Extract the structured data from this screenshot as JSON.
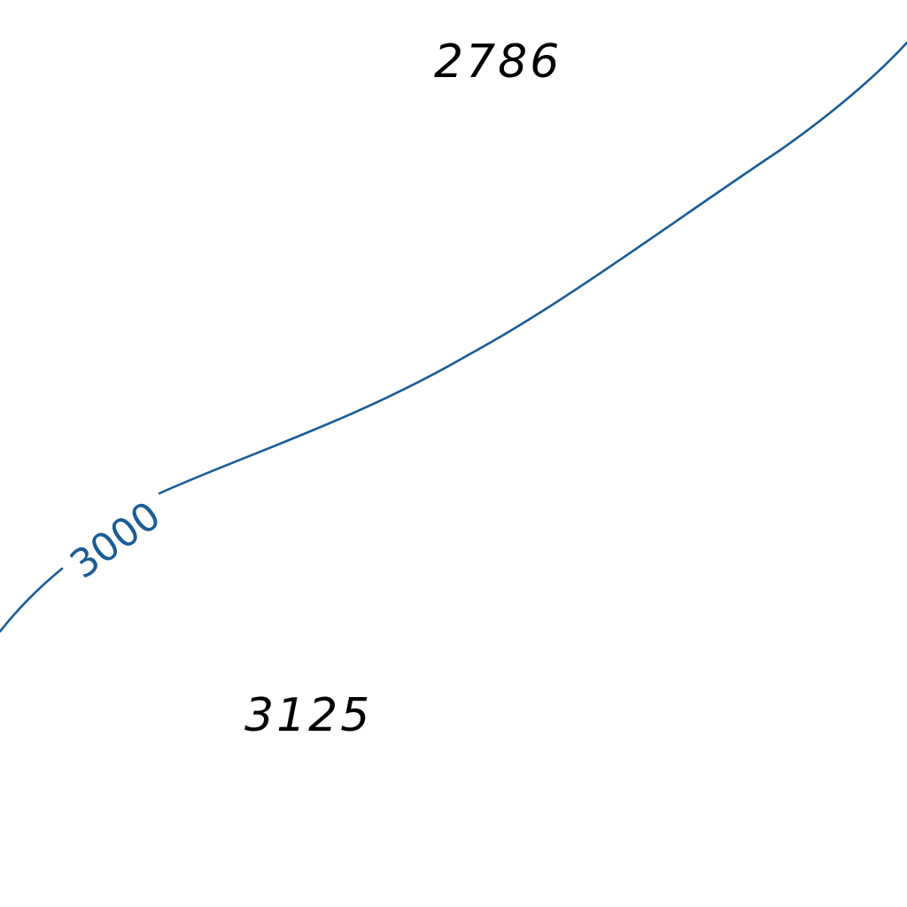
{
  "map": {
    "colors": {
      "background": "#ffffff",
      "contour": "#1a5c96",
      "spot_height_text": "#000000"
    },
    "contour": {
      "elevation_label": "3000"
    },
    "spot_heights": [
      {
        "value": "2786"
      },
      {
        "value": "3125"
      }
    ]
  }
}
